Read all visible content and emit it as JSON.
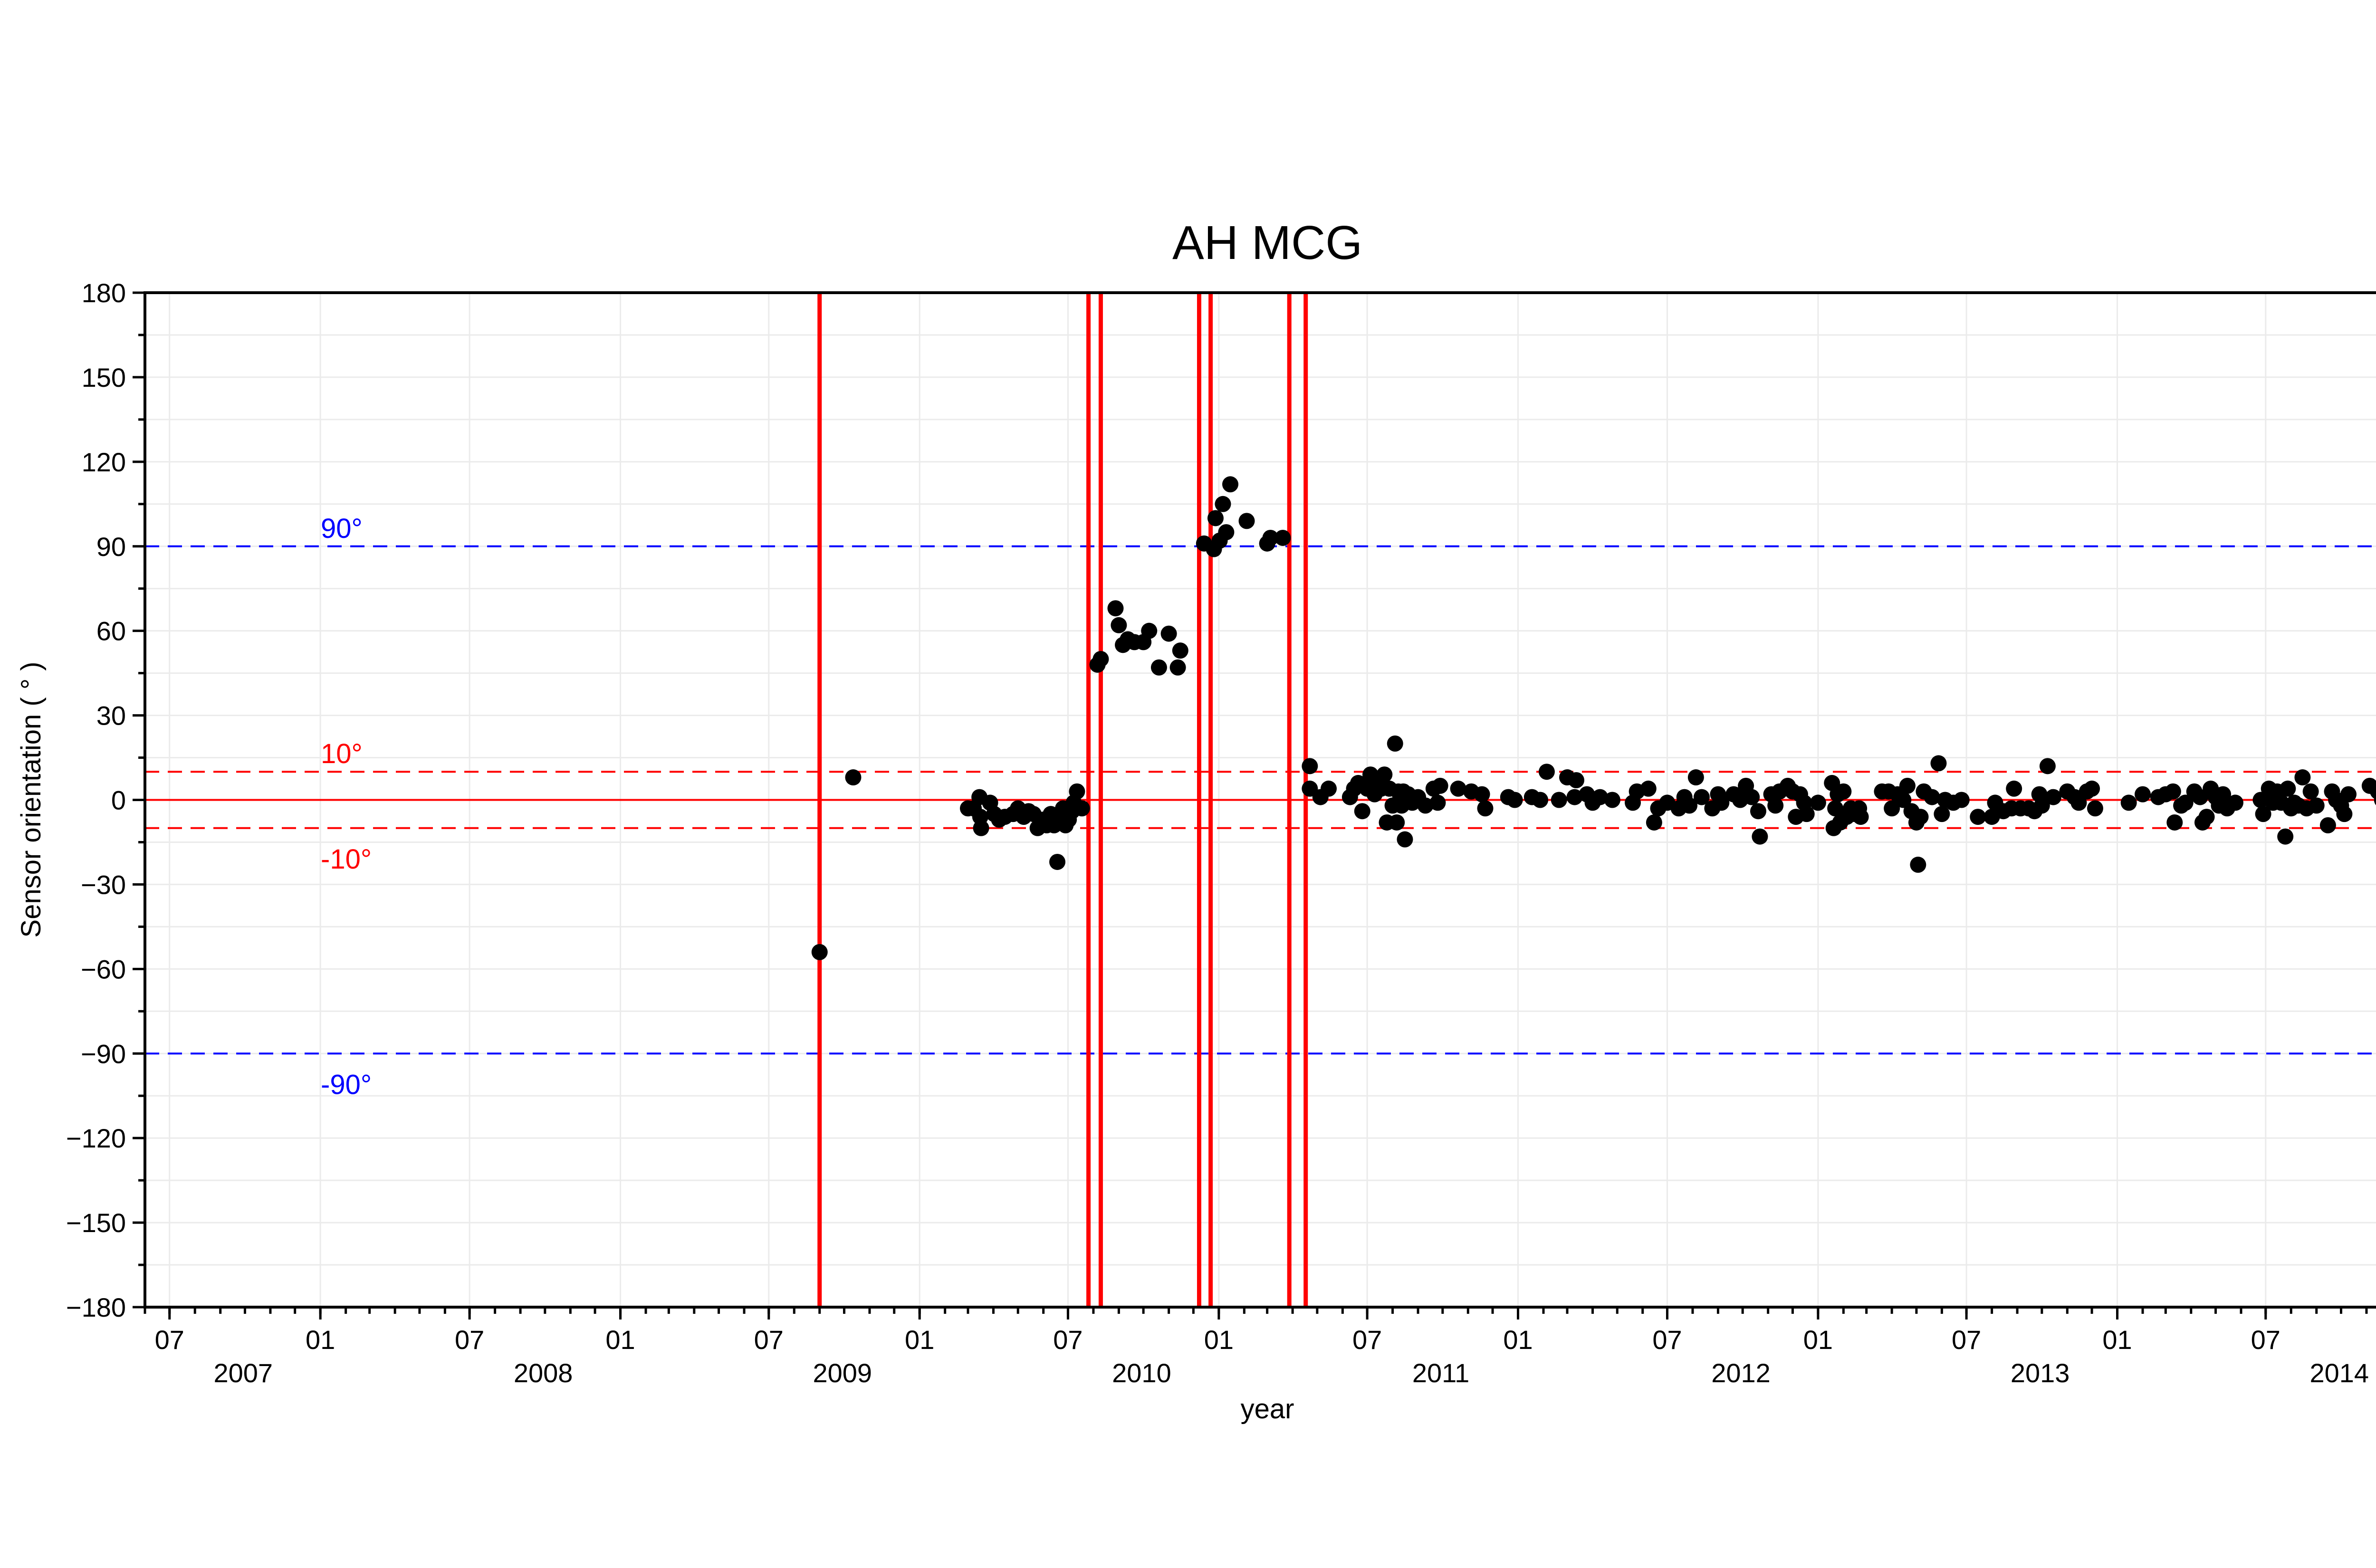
{
  "chart_data": {
    "type": "scatter",
    "title": "AH MCG",
    "xlabel": "year",
    "ylabel": "Sensor orientation ( ° )",
    "ylim": [
      -180,
      180
    ],
    "xlim": [
      "2007-06-01",
      "2014-11-30"
    ],
    "yticks": [
      -180,
      -150,
      -120,
      -90,
      -60,
      -30,
      0,
      30,
      60,
      90,
      120,
      150,
      180
    ],
    "ytick_labels": [
      "−180",
      "−150",
      "−120",
      "−90",
      "−60",
      "−30",
      "0",
      "30",
      "60",
      "90",
      "120",
      "150",
      "180"
    ],
    "xticks": [
      {
        "date": "2007-07-01",
        "month": "07",
        "year": "2007"
      },
      {
        "date": "2008-01-01",
        "month": "01",
        "year": ""
      },
      {
        "date": "2008-07-01",
        "month": "07",
        "year": "2008"
      },
      {
        "date": "2009-01-01",
        "month": "01",
        "year": ""
      },
      {
        "date": "2009-07-01",
        "month": "07",
        "year": "2009"
      },
      {
        "date": "2010-01-01",
        "month": "01",
        "year": ""
      },
      {
        "date": "2010-07-01",
        "month": "07",
        "year": "2010"
      },
      {
        "date": "2011-01-01",
        "month": "01",
        "year": ""
      },
      {
        "date": "2011-07-01",
        "month": "07",
        "year": "2011"
      },
      {
        "date": "2012-01-01",
        "month": "01",
        "year": ""
      },
      {
        "date": "2012-07-01",
        "month": "07",
        "year": "2012"
      },
      {
        "date": "2013-01-01",
        "month": "01",
        "year": ""
      },
      {
        "date": "2013-07-01",
        "month": "07",
        "year": "2013"
      },
      {
        "date": "2014-01-01",
        "month": "01",
        "year": ""
      },
      {
        "date": "2014-07-01",
        "month": "07",
        "year": "2014"
      }
    ],
    "grid": true,
    "reference_lines": [
      {
        "y": 90,
        "label": "90°",
        "color": "#0000ff",
        "style": "dashed"
      },
      {
        "y": -90,
        "label": "-90°",
        "color": "#0000ff",
        "style": "dashed"
      },
      {
        "y": 10,
        "label": "10°",
        "color": "#ff0000",
        "style": "dashed"
      },
      {
        "y": -10,
        "label": "-10°",
        "color": "#ff0000",
        "style": "dashed"
      },
      {
        "y": 0,
        "label": "",
        "color": "#ff0000",
        "style": "solid"
      }
    ],
    "event_lines": [
      "2009-09-01",
      "2010-07-26",
      "2010-08-10",
      "2010-12-08",
      "2010-12-22",
      "2011-03-28",
      "2011-04-17"
    ],
    "event_color": "#ff0000",
    "point_color": "#000000",
    "points": [
      [
        "2009-09-01",
        -54
      ],
      [
        "2009-10-12",
        8
      ],
      [
        "2010-03-01",
        -3
      ],
      [
        "2010-03-08",
        -3
      ],
      [
        "2010-03-15",
        1
      ],
      [
        "2010-03-16",
        -6
      ],
      [
        "2010-03-17",
        -10
      ],
      [
        "2010-03-28",
        -1
      ],
      [
        "2010-04-02",
        -5
      ],
      [
        "2010-04-08",
        -7
      ],
      [
        "2010-04-15",
        -6
      ],
      [
        "2010-04-25",
        -5
      ],
      [
        "2010-05-01",
        -3
      ],
      [
        "2010-05-08",
        -6
      ],
      [
        "2010-05-14",
        -4
      ],
      [
        "2010-05-20",
        -5
      ],
      [
        "2010-05-25",
        -10
      ],
      [
        "2010-06-01",
        -7
      ],
      [
        "2010-06-05",
        -9
      ],
      [
        "2010-06-10",
        -5
      ],
      [
        "2010-06-14",
        -9
      ],
      [
        "2010-06-18",
        -22
      ],
      [
        "2010-06-22",
        -6
      ],
      [
        "2010-06-25",
        -3
      ],
      [
        "2010-06-28",
        -9
      ],
      [
        "2010-07-02",
        -7
      ],
      [
        "2010-07-06",
        -4
      ],
      [
        "2010-07-08",
        -1
      ],
      [
        "2010-07-12",
        3
      ],
      [
        "2010-07-18",
        -3
      ],
      [
        "2010-08-06",
        48
      ],
      [
        "2010-08-10",
        50
      ],
      [
        "2010-08-28",
        68
      ],
      [
        "2010-09-01",
        62
      ],
      [
        "2010-09-06",
        55
      ],
      [
        "2010-09-12",
        57
      ],
      [
        "2010-09-20",
        56
      ],
      [
        "2010-10-01",
        56
      ],
      [
        "2010-10-08",
        60
      ],
      [
        "2010-10-20",
        47
      ],
      [
        "2010-11-01",
        59
      ],
      [
        "2010-11-12",
        47
      ],
      [
        "2010-11-15",
        53
      ],
      [
        "2010-12-14",
        91
      ],
      [
        "2010-12-26",
        89
      ],
      [
        "2010-12-28",
        100
      ],
      [
        "2011-01-02",
        92
      ],
      [
        "2011-01-06",
        105
      ],
      [
        "2011-01-10",
        95
      ],
      [
        "2011-01-15",
        112
      ],
      [
        "2011-02-04",
        99
      ],
      [
        "2011-03-01",
        91
      ],
      [
        "2011-03-05",
        93
      ],
      [
        "2011-03-20",
        93
      ],
      [
        "2011-04-22",
        4
      ],
      [
        "2011-04-22",
        12
      ],
      [
        "2011-05-05",
        1
      ],
      [
        "2011-05-15",
        4
      ],
      [
        "2011-06-10",
        1
      ],
      [
        "2011-06-15",
        4
      ],
      [
        "2011-06-20",
        6
      ],
      [
        "2011-06-25",
        -4
      ],
      [
        "2011-07-01",
        4
      ],
      [
        "2011-07-05",
        9
      ],
      [
        "2011-07-10",
        2
      ],
      [
        "2011-07-14",
        6
      ],
      [
        "2011-07-18",
        4
      ],
      [
        "2011-07-22",
        9
      ],
      [
        "2011-07-25",
        -8
      ],
      [
        "2011-07-28",
        4
      ],
      [
        "2011-08-01",
        -2
      ],
      [
        "2011-08-04",
        20
      ],
      [
        "2011-08-06",
        -8
      ],
      [
        "2011-08-08",
        3
      ],
      [
        "2011-08-10",
        0
      ],
      [
        "2011-08-12",
        -2
      ],
      [
        "2011-08-14",
        3
      ],
      [
        "2011-08-16",
        -14
      ],
      [
        "2011-08-20",
        2
      ],
      [
        "2011-08-25",
        -1
      ],
      [
        "2011-09-01",
        1
      ],
      [
        "2011-09-10",
        -2
      ],
      [
        "2011-09-20",
        4
      ],
      [
        "2011-09-25",
        -1
      ],
      [
        "2011-09-28",
        5
      ],
      [
        "2011-10-20",
        4
      ],
      [
        "2011-11-05",
        3
      ],
      [
        "2011-11-18",
        2
      ],
      [
        "2011-11-22",
        -3
      ],
      [
        "2011-12-20",
        1
      ],
      [
        "2011-12-28",
        0
      ],
      [
        "2012-01-18",
        1
      ],
      [
        "2012-01-28",
        0
      ],
      [
        "2012-02-05",
        10
      ],
      [
        "2012-02-20",
        0
      ],
      [
        "2012-03-01",
        8
      ],
      [
        "2012-03-10",
        1
      ],
      [
        "2012-03-12",
        7
      ],
      [
        "2012-03-25",
        2
      ],
      [
        "2012-04-01",
        -1
      ],
      [
        "2012-04-10",
        1
      ],
      [
        "2012-04-25",
        0
      ],
      [
        "2012-05-20",
        -1
      ],
      [
        "2012-05-25",
        3
      ],
      [
        "2012-06-08",
        4
      ],
      [
        "2012-06-15",
        -8
      ],
      [
        "2012-06-20",
        -3
      ],
      [
        "2012-07-01",
        -1
      ],
      [
        "2012-07-15",
        -3
      ],
      [
        "2012-07-22",
        1
      ],
      [
        "2012-07-28",
        -2
      ],
      [
        "2012-08-05",
        8
      ],
      [
        "2012-08-12",
        1
      ],
      [
        "2012-08-25",
        -3
      ],
      [
        "2012-09-01",
        2
      ],
      [
        "2012-09-05",
        -1
      ],
      [
        "2012-09-20",
        2
      ],
      [
        "2012-09-28",
        0
      ],
      [
        "2012-10-05",
        5
      ],
      [
        "2012-10-12",
        1
      ],
      [
        "2012-10-20",
        -4
      ],
      [
        "2012-10-22",
        -13
      ],
      [
        "2012-11-05",
        2
      ],
      [
        "2012-11-10",
        -2
      ],
      [
        "2012-11-15",
        3
      ],
      [
        "2012-11-25",
        5
      ],
      [
        "2012-12-01",
        3
      ],
      [
        "2012-12-05",
        -6
      ],
      [
        "2012-12-10",
        2
      ],
      [
        "2012-12-15",
        -1
      ],
      [
        "2012-12-18",
        -5
      ],
      [
        "2013-01-01",
        -1
      ],
      [
        "2013-01-18",
        6
      ],
      [
        "2013-01-20",
        -10
      ],
      [
        "2013-01-22",
        -3
      ],
      [
        "2013-01-25",
        2
      ],
      [
        "2013-01-28",
        -8
      ],
      [
        "2013-02-01",
        3
      ],
      [
        "2013-02-05",
        -6
      ],
      [
        "2013-02-10",
        -3
      ],
      [
        "2013-02-15",
        -5
      ],
      [
        "2013-02-20",
        -3
      ],
      [
        "2013-02-22",
        -6
      ],
      [
        "2013-03-20",
        3
      ],
      [
        "2013-03-28",
        3
      ],
      [
        "2013-04-01",
        -3
      ],
      [
        "2013-04-08",
        2
      ],
      [
        "2013-04-15",
        0
      ],
      [
        "2013-04-20",
        5
      ],
      [
        "2013-04-25",
        -4
      ],
      [
        "2013-05-01",
        -8
      ],
      [
        "2013-05-03",
        -23
      ],
      [
        "2013-05-06",
        -6
      ],
      [
        "2013-05-10",
        3
      ],
      [
        "2013-05-20",
        1
      ],
      [
        "2013-05-28",
        13
      ],
      [
        "2013-06-01",
        -5
      ],
      [
        "2013-06-05",
        0
      ],
      [
        "2013-06-15",
        -1
      ],
      [
        "2013-06-25",
        0
      ],
      [
        "2013-07-15",
        -6
      ],
      [
        "2013-08-01",
        -6
      ],
      [
        "2013-08-05",
        -1
      ],
      [
        "2013-08-15",
        -4
      ],
      [
        "2013-08-25",
        -3
      ],
      [
        "2013-08-28",
        4
      ],
      [
        "2013-09-05",
        -3
      ],
      [
        "2013-09-15",
        -3
      ],
      [
        "2013-09-22",
        -4
      ],
      [
        "2013-09-28",
        2
      ],
      [
        "2013-10-01",
        -2
      ],
      [
        "2013-10-08",
        12
      ],
      [
        "2013-10-15",
        1
      ],
      [
        "2013-11-01",
        3
      ],
      [
        "2013-11-10",
        1
      ],
      [
        "2013-11-15",
        -1
      ],
      [
        "2013-11-25",
        3
      ],
      [
        "2013-12-01",
        4
      ],
      [
        "2013-12-05",
        -3
      ],
      [
        "2014-01-15",
        -1
      ],
      [
        "2014-02-01",
        2
      ],
      [
        "2014-02-20",
        1
      ],
      [
        "2014-03-01",
        2
      ],
      [
        "2014-03-10",
        3
      ],
      [
        "2014-03-12",
        -8
      ],
      [
        "2014-03-20",
        -2
      ],
      [
        "2014-03-25",
        -1
      ],
      [
        "2014-04-05",
        3
      ],
      [
        "2014-04-12",
        1
      ],
      [
        "2014-04-15",
        -8
      ],
      [
        "2014-04-20",
        -6
      ],
      [
        "2014-04-25",
        4
      ],
      [
        "2014-05-01",
        1
      ],
      [
        "2014-05-05",
        -2
      ],
      [
        "2014-05-10",
        2
      ],
      [
        "2014-05-15",
        -3
      ],
      [
        "2014-05-25",
        -1
      ],
      [
        "2014-06-25",
        0
      ],
      [
        "2014-06-28",
        -5
      ],
      [
        "2014-07-05",
        4
      ],
      [
        "2014-07-10",
        -1
      ],
      [
        "2014-07-15",
        3
      ],
      [
        "2014-07-20",
        -1
      ],
      [
        "2014-07-25",
        -13
      ],
      [
        "2014-07-28",
        4
      ],
      [
        "2014-08-01",
        -3
      ],
      [
        "2014-08-05",
        -1
      ],
      [
        "2014-08-10",
        -2
      ],
      [
        "2014-08-15",
        8
      ],
      [
        "2014-08-20",
        -3
      ],
      [
        "2014-08-25",
        3
      ],
      [
        "2014-09-01",
        -2
      ],
      [
        "2014-09-15",
        -9
      ],
      [
        "2014-09-20",
        3
      ],
      [
        "2014-09-25",
        0
      ],
      [
        "2014-10-01",
        -2
      ],
      [
        "2014-10-05",
        -5
      ],
      [
        "2014-10-10",
        2
      ],
      [
        "2014-11-05",
        5
      ],
      [
        "2014-11-15",
        3
      ],
      [
        "2014-11-20",
        0
      ],
      [
        "2014-11-25",
        0
      ],
      [
        "2014-11-30",
        1
      ]
    ]
  }
}
